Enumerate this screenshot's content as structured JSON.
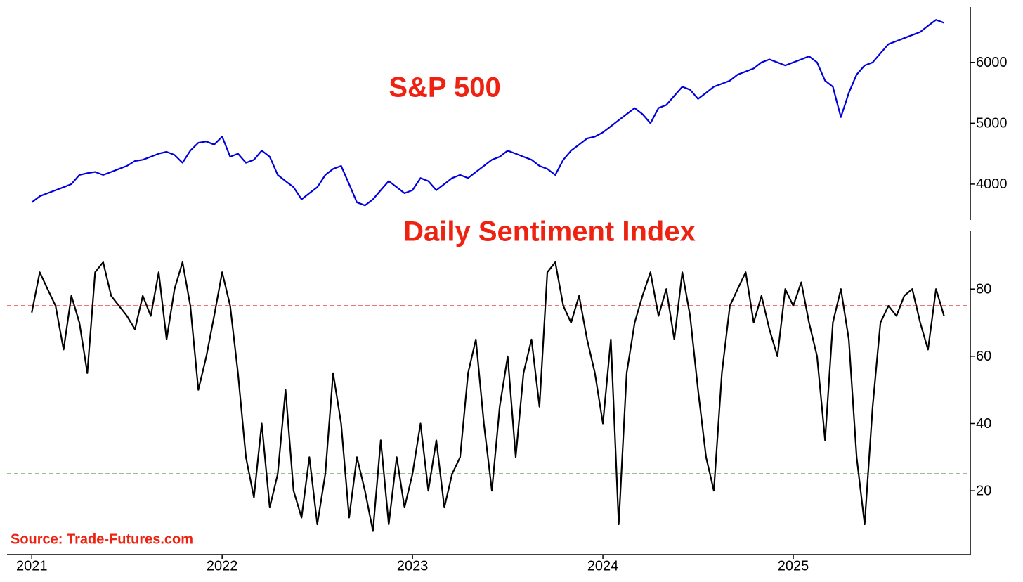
{
  "chart_data": [
    {
      "type": "line",
      "title": "S&P 500",
      "color": "#0000dd",
      "xlim": [
        2020.87,
        2025.93
      ],
      "ylim": [
        3410,
        6910
      ],
      "yticks": [
        4000,
        5000,
        6000
      ],
      "x": [
        2021,
        2021.042,
        2021.083,
        2021.125,
        2021.167,
        2021.208,
        2021.25,
        2021.292,
        2021.333,
        2021.375,
        2021.417,
        2021.458,
        2021.5,
        2021.542,
        2021.583,
        2021.625,
        2021.667,
        2021.708,
        2021.75,
        2021.792,
        2021.833,
        2021.875,
        2021.917,
        2021.958,
        2022,
        2022.042,
        2022.083,
        2022.125,
        2022.167,
        2022.208,
        2022.25,
        2022.292,
        2022.333,
        2022.375,
        2022.417,
        2022.458,
        2022.5,
        2022.542,
        2022.583,
        2022.625,
        2022.667,
        2022.708,
        2022.75,
        2022.792,
        2022.833,
        2022.875,
        2022.917,
        2022.958,
        2023,
        2023.042,
        2023.083,
        2023.125,
        2023.167,
        2023.208,
        2023.25,
        2023.292,
        2023.333,
        2023.375,
        2023.417,
        2023.458,
        2023.5,
        2023.542,
        2023.583,
        2023.625,
        2023.667,
        2023.708,
        2023.75,
        2023.792,
        2023.833,
        2023.875,
        2023.917,
        2023.958,
        2024,
        2024.042,
        2024.083,
        2024.125,
        2024.167,
        2024.208,
        2024.25,
        2024.292,
        2024.333,
        2024.375,
        2024.417,
        2024.458,
        2024.5,
        2024.542,
        2024.583,
        2024.625,
        2024.667,
        2024.708,
        2024.75,
        2024.792,
        2024.833,
        2024.875,
        2024.917,
        2024.958,
        2025,
        2025.042,
        2025.083,
        2025.125,
        2025.167,
        2025.208,
        2025.25,
        2025.292,
        2025.333,
        2025.375,
        2025.417,
        2025.458,
        2025.5,
        2025.542,
        2025.583,
        2025.625,
        2025.667,
        2025.708,
        2025.75,
        2025.792
      ],
      "values": [
        3700,
        3800,
        3850,
        3900,
        3950,
        4000,
        4150,
        4180,
        4200,
        4150,
        4200,
        4250,
        4300,
        4380,
        4400,
        4450,
        4500,
        4530,
        4480,
        4350,
        4550,
        4680,
        4700,
        4650,
        4780,
        4450,
        4500,
        4350,
        4400,
        4550,
        4450,
        4150,
        4050,
        3950,
        3750,
        3850,
        3950,
        4150,
        4250,
        4300,
        4000,
        3700,
        3650,
        3750,
        3900,
        4050,
        3950,
        3850,
        3900,
        4100,
        4050,
        3900,
        4000,
        4100,
        4150,
        4100,
        4200,
        4300,
        4400,
        4450,
        4550,
        4500,
        4450,
        4400,
        4300,
        4250,
        4150,
        4400,
        4550,
        4650,
        4750,
        4780,
        4850,
        4950,
        5050,
        5150,
        5250,
        5150,
        5000,
        5250,
        5300,
        5450,
        5600,
        5550,
        5400,
        5500,
        5600,
        5650,
        5700,
        5800,
        5850,
        5900,
        6000,
        6050,
        6000,
        5950,
        6000,
        6050,
        6100,
        6000,
        5700,
        5600,
        5100,
        5500,
        5800,
        5950,
        6000,
        6150,
        6300,
        6350,
        6400,
        6450,
        6500,
        6600,
        6700,
        6650
      ]
    },
    {
      "type": "line",
      "title": "Daily Sentiment Index",
      "color": "#000000",
      "annotation": "Source: Trade-Futures.com",
      "xlim": [
        2020.87,
        2025.93
      ],
      "xticks": [
        2021,
        2022,
        2023,
        2024,
        2025
      ],
      "ylim": [
        1,
        97.4
      ],
      "yticks": [
        20,
        40,
        60,
        80
      ],
      "hlines": [
        {
          "value": 75,
          "color": "#ee2222"
        },
        {
          "value": 25,
          "color": "#228822"
        }
      ],
      "x": [
        2021,
        2021.042,
        2021.083,
        2021.125,
        2021.167,
        2021.208,
        2021.25,
        2021.292,
        2021.333,
        2021.375,
        2021.417,
        2021.458,
        2021.5,
        2021.542,
        2021.583,
        2021.625,
        2021.667,
        2021.708,
        2021.75,
        2021.792,
        2021.833,
        2021.875,
        2021.917,
        2021.958,
        2022,
        2022.042,
        2022.083,
        2022.125,
        2022.167,
        2022.208,
        2022.25,
        2022.292,
        2022.333,
        2022.375,
        2022.417,
        2022.458,
        2022.5,
        2022.542,
        2022.583,
        2022.625,
        2022.667,
        2022.708,
        2022.75,
        2022.792,
        2022.833,
        2022.875,
        2022.917,
        2022.958,
        2023,
        2023.042,
        2023.083,
        2023.125,
        2023.167,
        2023.208,
        2023.25,
        2023.292,
        2023.333,
        2023.375,
        2023.417,
        2023.458,
        2023.5,
        2023.542,
        2023.583,
        2023.625,
        2023.667,
        2023.708,
        2023.75,
        2023.792,
        2023.833,
        2023.875,
        2023.917,
        2023.958,
        2024,
        2024.042,
        2024.083,
        2024.125,
        2024.167,
        2024.208,
        2024.25,
        2024.292,
        2024.333,
        2024.375,
        2024.417,
        2024.458,
        2024.5,
        2024.542,
        2024.583,
        2024.625,
        2024.667,
        2024.708,
        2024.75,
        2024.792,
        2024.833,
        2024.875,
        2024.917,
        2024.958,
        2025,
        2025.042,
        2025.083,
        2025.125,
        2025.167,
        2025.208,
        2025.25,
        2025.292,
        2025.333,
        2025.375,
        2025.417,
        2025.458,
        2025.5,
        2025.542,
        2025.583,
        2025.625,
        2025.667,
        2025.708,
        2025.75,
        2025.792
      ],
      "values": [
        73,
        85,
        80,
        75,
        62,
        78,
        70,
        55,
        85,
        88,
        78,
        75,
        72,
        68,
        78,
        72,
        85,
        65,
        80,
        88,
        75,
        50,
        60,
        72,
        85,
        75,
        55,
        30,
        18,
        40,
        15,
        25,
        50,
        20,
        12,
        30,
        10,
        25,
        55,
        40,
        12,
        30,
        20,
        8,
        35,
        10,
        30,
        15,
        25,
        40,
        20,
        35,
        15,
        25,
        30,
        55,
        65,
        40,
        20,
        45,
        60,
        30,
        55,
        65,
        45,
        85,
        88,
        75,
        70,
        78,
        65,
        55,
        40,
        65,
        10,
        55,
        70,
        78,
        85,
        72,
        80,
        65,
        85,
        72,
        50,
        30,
        20,
        55,
        75,
        80,
        85,
        70,
        78,
        68,
        60,
        80,
        75,
        82,
        70,
        60,
        35,
        70,
        80,
        65,
        30,
        10,
        45,
        70,
        75,
        72,
        78,
        80,
        70,
        62,
        80,
        72
      ]
    }
  ]
}
